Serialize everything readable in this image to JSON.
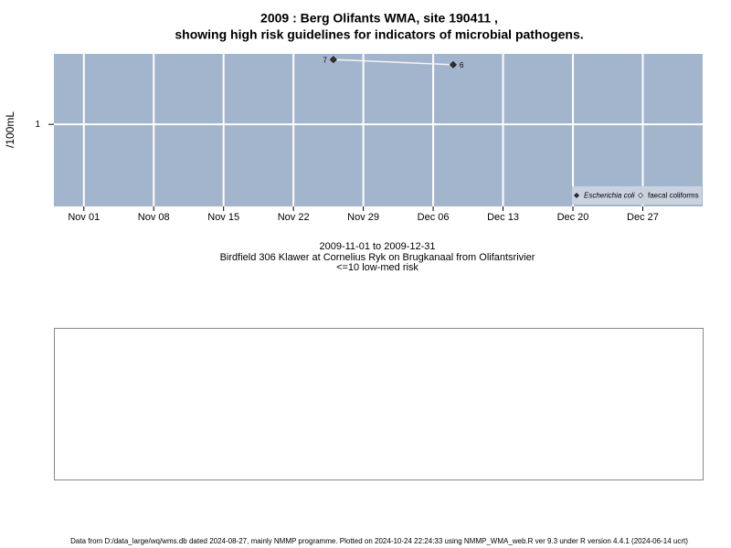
{
  "chart_data": {
    "type": "line",
    "title": "2009 : Berg Olifants WMA, site 190411 ,",
    "subtitle": "showing high risk guidelines for indicators of microbial pathogens.",
    "ylabel": "/100mL",
    "x": [
      "2009-11-26",
      "2009-12-08"
    ],
    "series": [
      {
        "name": "Escherichia coli",
        "color": "#333333",
        "values": [
          7,
          6
        ]
      },
      {
        "name": "faecal coliforms",
        "color": "#ffffff",
        "values": [
          null,
          null
        ]
      }
    ],
    "xlim": [
      "2009-10-29",
      "2010-01-02"
    ],
    "xticks": [
      {
        "value": "2009-11-01",
        "label": "Nov 01"
      },
      {
        "value": "2009-11-08",
        "label": "Nov 08"
      },
      {
        "value": "2009-11-15",
        "label": "Nov 15"
      },
      {
        "value": "2009-11-22",
        "label": "Nov 22"
      },
      {
        "value": "2009-11-29",
        "label": "Nov 29"
      },
      {
        "value": "2009-12-06",
        "label": "Dec 06"
      },
      {
        "value": "2009-12-13",
        "label": "Dec 13"
      },
      {
        "value": "2009-12-20",
        "label": "Dec 20"
      },
      {
        "value": "2009-12-27",
        "label": "Dec 27"
      }
    ],
    "ylim": [
      0.085,
      8.3
    ],
    "yticks": [
      1
    ],
    "log_y": true,
    "grid": true,
    "legend": "bottom-right",
    "caption": [
      "2009-11-01 to 2009-12-31",
      "Birdfield 306 Klawer at Cornelius Ryk on Brugkanaal from Olifantsrivier",
      "<=10 low-med risk"
    ],
    "footer": "Data from D:/data_large/wq/wms.db dated 2024-08-27, mainly NMMP programme. Plotted on 2024-10-24 22:24:33 using NMMP_WMA_web.R ver 9.3 under R version 4.4.1 (2024-06-14 ucrt)"
  }
}
